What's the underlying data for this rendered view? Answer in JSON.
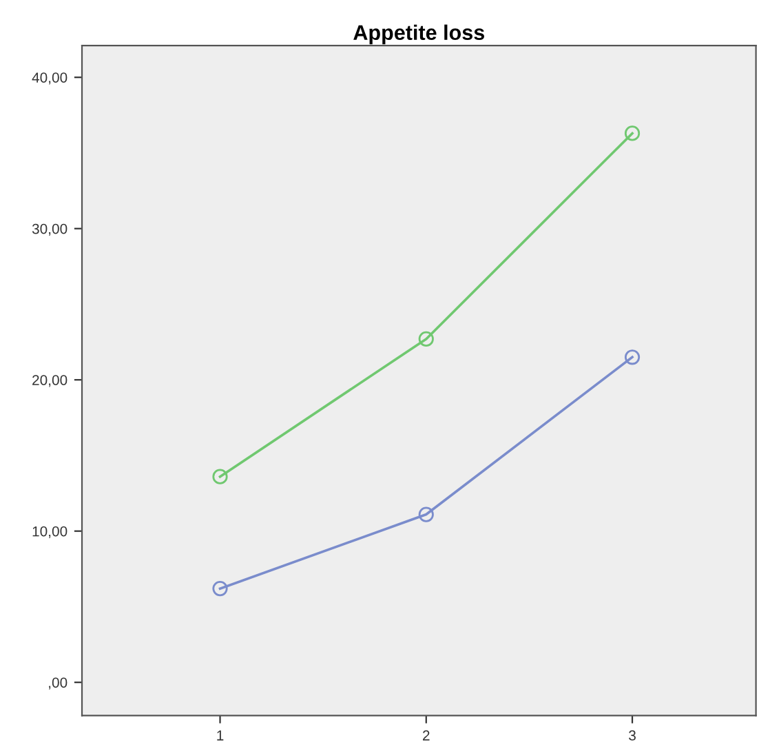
{
  "chart_data": {
    "type": "line",
    "title": "Appetite loss",
    "x": [
      1,
      2,
      3
    ],
    "series": [
      {
        "color": "#70c870",
        "values": [
          13.6,
          22.7,
          36.3
        ]
      },
      {
        "color": "#7a8ccc",
        "values": [
          6.2,
          11.1,
          21.5
        ]
      }
    ],
    "xlim": [
      0.33,
      3.6
    ],
    "xticks": [
      1,
      2,
      3
    ],
    "ylim": [
      -2.2,
      42.1
    ],
    "yticks": [
      {
        "value": 0,
        "label": ",00"
      },
      {
        "value": 10,
        "label": "10,00"
      },
      {
        "value": 20,
        "label": "20,00"
      },
      {
        "value": 30,
        "label": "30,00"
      },
      {
        "value": 40,
        "label": "40,00"
      }
    ],
    "marker": "circle",
    "line_style": "solid",
    "grid": false,
    "legend": false
  }
}
